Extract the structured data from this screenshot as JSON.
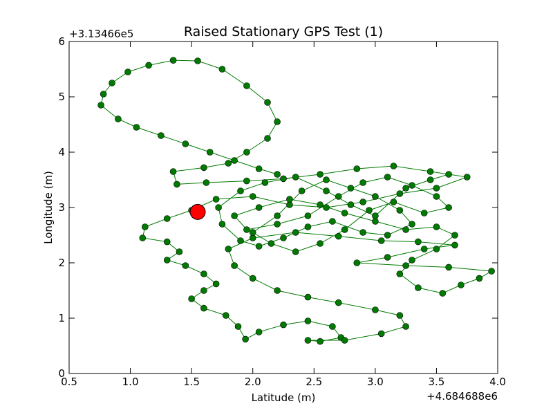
{
  "chart_data": {
    "type": "scatter",
    "title": "Raised Stationary GPS Test (1)",
    "xlabel": "Latitude (m)",
    "ylabel": "Longitude (m)",
    "x_offset_label": "+4.684688e6",
    "y_offset_label": "+3.13466e5",
    "xlim": [
      0.5,
      4.0
    ],
    "ylim": [
      0,
      6
    ],
    "x_ticks": [
      "0.5",
      "1.0",
      "1.5",
      "2.0",
      "2.5",
      "3.0",
      "3.5",
      "4.0"
    ],
    "y_ticks": [
      "0",
      "1",
      "2",
      "3",
      "4",
      "5",
      "6"
    ],
    "grid": false,
    "legend": "none",
    "series": [
      {
        "color": "#007a00",
        "marker": "circle",
        "connected": true,
        "points": [
          [
            2.2,
            3.6
          ],
          [
            2.05,
            3.7
          ],
          [
            1.85,
            3.85
          ],
          [
            1.65,
            4.0
          ],
          [
            1.45,
            4.15
          ],
          [
            1.25,
            4.3
          ],
          [
            1.05,
            4.45
          ],
          [
            0.9,
            4.6
          ],
          [
            0.76,
            4.85
          ],
          [
            0.78,
            5.05
          ],
          [
            0.85,
            5.25
          ],
          [
            0.98,
            5.45
          ],
          [
            1.15,
            5.57
          ],
          [
            1.35,
            5.66
          ],
          [
            1.55,
            5.65
          ],
          [
            1.75,
            5.5
          ],
          [
            1.95,
            5.2
          ],
          [
            2.12,
            4.9
          ],
          [
            2.2,
            4.55
          ],
          [
            2.12,
            4.25
          ],
          [
            1.95,
            4.0
          ],
          [
            1.8,
            3.8
          ],
          [
            1.6,
            3.72
          ],
          [
            1.35,
            3.65
          ],
          [
            1.38,
            3.42
          ],
          [
            1.62,
            3.45
          ],
          [
            1.95,
            3.48
          ],
          [
            2.25,
            3.52
          ],
          [
            2.55,
            3.6
          ],
          [
            2.85,
            3.7
          ],
          [
            3.15,
            3.75
          ],
          [
            3.45,
            3.65
          ],
          [
            3.75,
            3.55
          ],
          [
            3.5,
            3.35
          ],
          [
            3.2,
            3.25
          ],
          [
            2.9,
            3.1
          ],
          [
            2.6,
            3.0
          ],
          [
            2.3,
            3.05
          ],
          [
            2.0,
            3.2
          ],
          [
            1.7,
            3.15
          ],
          [
            1.5,
            2.95
          ],
          [
            1.3,
            2.8
          ],
          [
            1.12,
            2.65
          ],
          [
            1.1,
            2.45
          ],
          [
            1.3,
            2.38
          ],
          [
            1.4,
            2.2
          ],
          [
            1.3,
            2.05
          ],
          [
            1.45,
            1.95
          ],
          [
            1.6,
            1.8
          ],
          [
            1.7,
            1.62
          ],
          [
            1.6,
            1.5
          ],
          [
            1.5,
            1.35
          ],
          [
            1.6,
            1.18
          ],
          [
            1.78,
            1.05
          ],
          [
            1.88,
            0.85
          ],
          [
            1.94,
            0.62
          ],
          [
            2.05,
            0.75
          ],
          [
            2.25,
            0.88
          ],
          [
            2.45,
            0.95
          ],
          [
            2.65,
            0.85
          ],
          [
            2.72,
            0.65
          ],
          [
            2.55,
            0.58
          ],
          [
            2.45,
            0.6
          ],
          [
            2.75,
            0.6
          ],
          [
            3.05,
            0.72
          ],
          [
            3.25,
            0.85
          ],
          [
            3.2,
            1.05
          ],
          [
            3.0,
            1.15
          ],
          [
            2.7,
            1.28
          ],
          [
            2.45,
            1.38
          ],
          [
            2.2,
            1.5
          ],
          [
            2.0,
            1.72
          ],
          [
            1.85,
            1.95
          ],
          [
            1.8,
            2.25
          ],
          [
            2.0,
            2.45
          ],
          [
            2.35,
            2.55
          ],
          [
            2.7,
            2.48
          ],
          [
            3.05,
            2.4
          ],
          [
            3.35,
            2.38
          ],
          [
            3.65,
            2.32
          ],
          [
            3.4,
            2.25
          ],
          [
            3.1,
            2.1
          ],
          [
            2.85,
            2.0
          ],
          [
            3.25,
            1.95
          ],
          [
            3.6,
            1.92
          ],
          [
            3.95,
            1.85
          ],
          [
            3.85,
            1.72
          ],
          [
            3.7,
            1.6
          ],
          [
            3.55,
            1.45
          ],
          [
            3.35,
            1.55
          ],
          [
            3.2,
            1.8
          ],
          [
            3.3,
            2.05
          ],
          [
            3.5,
            2.25
          ],
          [
            3.65,
            2.5
          ],
          [
            3.5,
            2.65
          ],
          [
            3.25,
            2.6
          ],
          [
            3.0,
            2.75
          ],
          [
            2.75,
            2.9
          ],
          [
            2.55,
            3.05
          ],
          [
            2.3,
            3.15
          ],
          [
            2.05,
            3.0
          ],
          [
            1.85,
            2.85
          ],
          [
            1.95,
            2.6
          ],
          [
            2.2,
            2.7
          ],
          [
            2.45,
            2.85
          ],
          [
            2.7,
            3.2
          ],
          [
            2.9,
            3.45
          ],
          [
            3.1,
            3.55
          ],
          [
            3.3,
            3.4
          ],
          [
            3.5,
            3.2
          ],
          [
            3.6,
            3.0
          ],
          [
            3.4,
            2.9
          ],
          [
            3.15,
            3.1
          ],
          [
            2.95,
            2.95
          ],
          [
            2.75,
            2.6
          ],
          [
            2.55,
            2.35
          ],
          [
            2.35,
            2.2
          ],
          [
            2.15,
            2.35
          ],
          [
            2.0,
            2.55
          ],
          [
            2.2,
            2.85
          ],
          [
            2.4,
            3.3
          ],
          [
            2.6,
            3.5
          ],
          [
            2.8,
            3.35
          ],
          [
            3.0,
            3.2
          ],
          [
            3.2,
            2.95
          ],
          [
            3.3,
            2.7
          ],
          [
            3.1,
            2.5
          ],
          [
            2.9,
            2.55
          ],
          [
            2.65,
            2.75
          ],
          [
            2.45,
            2.65
          ],
          [
            2.25,
            2.45
          ],
          [
            2.05,
            2.3
          ],
          [
            1.9,
            2.4
          ],
          [
            1.75,
            2.7
          ],
          [
            1.72,
            3.0
          ],
          [
            1.9,
            3.3
          ],
          [
            2.1,
            3.45
          ],
          [
            2.35,
            3.55
          ],
          [
            2.6,
            3.3
          ],
          [
            2.8,
            3.05
          ],
          [
            3.0,
            2.85
          ],
          [
            3.25,
            3.35
          ],
          [
            3.45,
            3.5
          ],
          [
            3.6,
            3.6
          ]
        ]
      }
    ],
    "highlight": {
      "x": 1.55,
      "y": 2.92,
      "color": "#ff0000"
    }
  }
}
